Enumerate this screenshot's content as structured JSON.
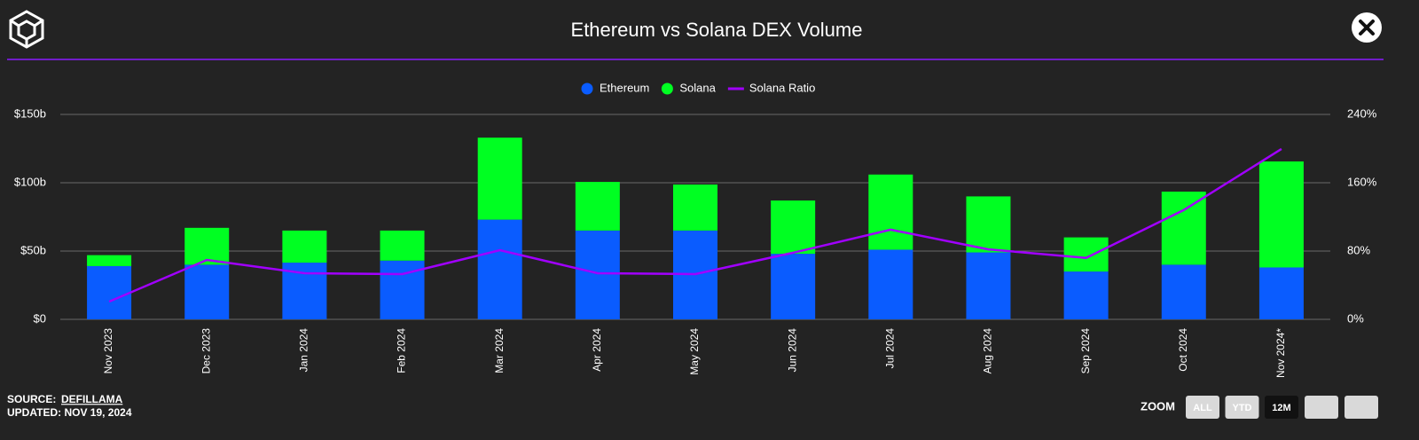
{
  "chart_data": {
    "type": "bar",
    "stacked": true,
    "title": "Ethereum vs Solana DEX Volume",
    "categories": [
      "Nov 2023",
      "Dec 2023",
      "Jan 2024",
      "Feb 2024",
      "Mar 2024",
      "Apr 2024",
      "May 2024",
      "Jun 2024",
      "Jul 2024",
      "Aug 2024",
      "Sep 2024",
      "Oct 2024",
      "Nov 2024*"
    ],
    "series": [
      {
        "name": "Ethereum",
        "type": "bar",
        "color": "#0a5cff",
        "values": [
          39,
          40,
          41.5,
          43,
          73,
          65,
          65,
          48,
          51,
          49,
          35,
          40,
          38
        ]
      },
      {
        "name": "Solana",
        "type": "bar",
        "color": "#00ff22",
        "values": [
          8,
          27,
          23.5,
          22,
          60,
          35.6,
          33.7,
          39,
          55,
          41,
          25,
          53.5,
          77.6
        ]
      },
      {
        "name": "Solana Ratio",
        "type": "line",
        "axis": "y2",
        "color": "#a100ff",
        "values": [
          20.8,
          69.6,
          54,
          53,
          81,
          54,
          53,
          78,
          105,
          82,
          72,
          128,
          199.5
        ]
      }
    ],
    "ylim": [
      0,
      150
    ],
    "yticks": [
      {
        "value": 0,
        "label": "$0"
      },
      {
        "value": 50,
        "label": "$50b"
      },
      {
        "value": 100,
        "label": "$100b"
      },
      {
        "value": 150,
        "label": "$150b"
      }
    ],
    "y2lim": [
      0,
      240
    ],
    "y2ticks": [
      {
        "value": 0,
        "label": "0%"
      },
      {
        "value": 80,
        "label": "80%"
      },
      {
        "value": 160,
        "label": "160%"
      },
      {
        "value": 240,
        "label": "240%"
      }
    ],
    "grid": true,
    "legend": "top"
  },
  "footer": {
    "source_label": "SOURCE:",
    "source": "DEFILLAMA",
    "updated": "UPDATED: NOV 19, 2024"
  },
  "zoom": {
    "label": "ZOOM",
    "buttons": [
      "ALL",
      "YTD",
      "12M"
    ],
    "selected": 2
  }
}
